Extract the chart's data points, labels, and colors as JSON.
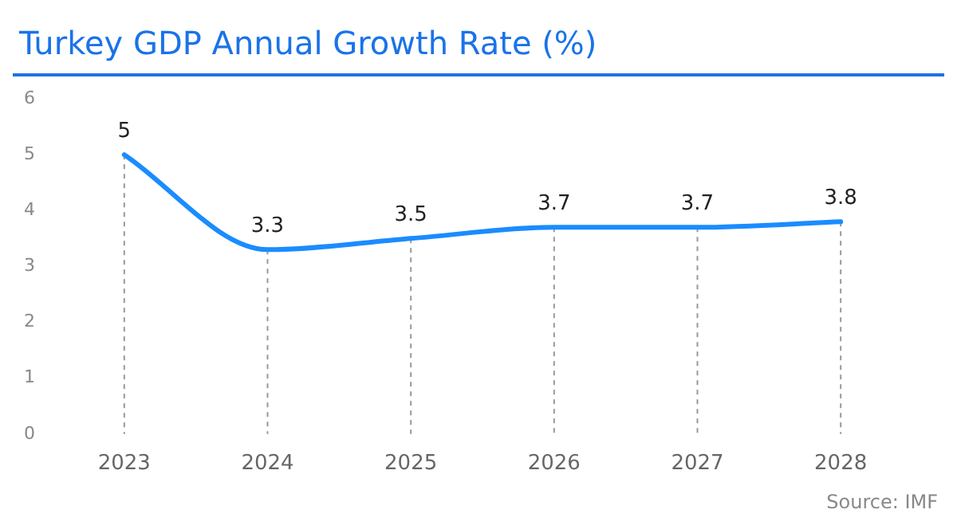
{
  "chart_data": {
    "type": "line",
    "title": "Turkey GDP Annual Growth Rate (%)",
    "categories": [
      "2023",
      "2024",
      "2025",
      "2026",
      "2027",
      "2028"
    ],
    "series": [
      {
        "color": "#1a8cff",
        "values": [
          5,
          3.3,
          3.5,
          3.7,
          3.7,
          3.8
        ]
      }
    ],
    "ylim": [
      0,
      6
    ],
    "yticks": [
      0,
      1,
      2,
      3,
      4,
      5,
      6
    ],
    "grid": "x",
    "marker": "none",
    "data_labels": true,
    "legend": false,
    "annotations": [
      "Source: IMF"
    ]
  }
}
